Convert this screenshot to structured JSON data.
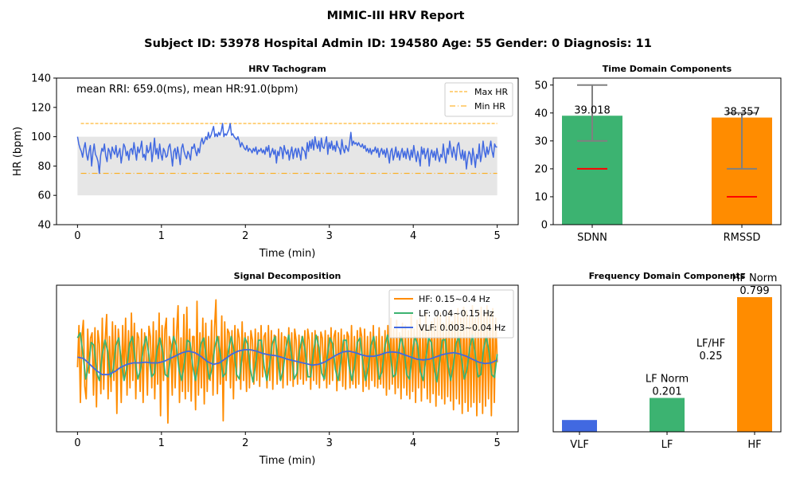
{
  "figure": {
    "title": "MIMIC-III HRV Report",
    "subtitle": "Subject ID: 53978 Hospital Admin ID: 194580 Age: 55 Gender: 0 Diagnosis: 11"
  },
  "colors": {
    "hr_line": "#4169e1",
    "max_line": "#ffa500",
    "min_line": "#ffa500",
    "band": "#e6e6e6",
    "sdnn": "#3cb371",
    "rmssd": "#ff8c00",
    "error": "#808080",
    "median": "#ff0000",
    "vlf": "#4169e1",
    "lf": "#3cb371",
    "hf": "#ff8c00"
  },
  "chart_data": [
    {
      "id": "tachogram",
      "type": "line",
      "title": "HRV Tachogram",
      "xlabel": "Time (min)",
      "ylabel": "HR (bpm)",
      "xlim": [
        -0.25,
        5.25
      ],
      "ylim": [
        40,
        140
      ],
      "xticks": [
        "0",
        "1",
        "2",
        "3",
        "4",
        "5"
      ],
      "yticks": [
        "40",
        "60",
        "80",
        "100",
        "120",
        "140"
      ],
      "annotation": "mean RRI: 659.0(ms), mean HR:91.0(bpm)",
      "normal_band": [
        60,
        100
      ],
      "max_hr": 109,
      "min_hr": 75,
      "legend": [
        "Max HR",
        "Min HR"
      ],
      "hr_x_range": [
        0,
        5
      ],
      "hr_values": [
        100,
        95,
        92,
        90,
        86,
        92,
        96,
        88,
        84,
        90,
        94,
        80,
        89,
        95,
        88,
        86,
        83,
        75,
        87,
        92,
        90,
        95,
        87,
        83,
        92,
        90,
        85,
        93,
        90,
        88,
        94,
        86,
        89,
        92,
        82,
        88,
        95,
        93,
        87,
        90,
        84,
        91,
        92,
        88,
        96,
        90,
        84,
        93,
        89,
        92,
        97,
        86,
        88,
        84,
        94,
        89,
        91,
        96,
        83,
        90,
        99,
        88,
        92,
        85,
        95,
        88,
        84,
        92,
        90,
        86,
        87,
        93,
        95,
        88,
        80,
        90,
        92,
        85,
        93,
        88,
        81,
        92,
        95,
        90,
        87,
        85,
        90,
        88,
        84,
        93,
        92,
        95,
        90,
        87,
        92,
        89,
        96,
        99,
        95,
        97,
        100,
        98,
        103,
        99,
        101,
        104,
        107,
        100,
        102,
        100,
        103,
        101,
        104,
        109,
        100,
        102,
        101,
        103,
        105,
        109,
        101,
        102,
        100,
        99,
        98,
        100,
        97,
        93,
        96,
        94,
        92,
        91,
        94,
        90,
        92,
        91,
        89,
        92,
        90,
        93,
        88,
        91,
        90,
        92,
        89,
        91,
        88,
        93,
        90,
        94,
        86,
        89,
        92,
        88,
        91,
        82,
        90,
        87,
        93,
        92,
        85,
        94,
        90,
        88,
        91,
        84,
        89,
        93,
        85,
        90,
        92,
        86,
        92,
        89,
        84,
        93,
        91,
        90,
        85,
        96,
        90,
        97,
        92,
        98,
        91,
        100,
        95,
        92,
        97,
        90,
        99,
        93,
        92,
        96,
        100,
        88,
        96,
        92,
        97,
        91,
        94,
        90,
        97,
        93,
        92,
        88,
        98,
        92,
        89,
        94,
        92,
        90,
        96,
        103,
        94,
        97,
        95,
        96,
        94,
        96,
        94,
        93,
        95,
        92,
        94,
        90,
        92,
        89,
        92,
        88,
        91,
        90,
        93,
        89,
        92,
        86,
        90,
        92,
        88,
        91,
        86,
        92,
        88,
        82,
        90,
        92,
        84,
        88,
        93,
        86,
        90,
        84,
        89,
        92,
        86,
        90,
        85,
        92,
        88,
        84,
        91,
        86,
        94,
        88,
        83,
        90,
        86,
        80,
        93,
        88,
        92,
        85,
        89,
        92,
        80,
        88,
        91,
        86,
        90,
        84,
        92,
        87,
        83,
        88,
        86,
        95,
        87,
        82,
        92,
        88,
        97,
        91,
        86,
        93,
        89,
        84,
        94,
        96,
        89,
        85,
        91,
        84,
        90,
        78,
        85,
        90,
        88,
        81,
        92,
        86,
        79,
        88,
        85,
        95,
        83,
        88,
        97,
        90,
        86,
        93,
        88,
        92,
        97,
        90,
        86,
        95,
        93,
        93
      ]
    },
    {
      "id": "time_domain",
      "type": "bar",
      "title": "Time Domain Components",
      "categories": [
        "SDNN",
        "RMSSD"
      ],
      "values": [
        39.018,
        38.357
      ],
      "value_labels": [
        "39.018",
        "38.357"
      ],
      "error_low": [
        30,
        20
      ],
      "error_high": [
        50,
        40
      ],
      "reference": [
        20,
        10
      ],
      "ylim": [
        0,
        52.5
      ],
      "yticks": [
        "0",
        "10",
        "20",
        "30",
        "40",
        "50"
      ]
    },
    {
      "id": "decomposition",
      "type": "line",
      "title": "Signal Decomposition",
      "xlabel": "Time (min)",
      "xlim": [
        -0.25,
        5.25
      ],
      "ylim": [
        -1.0,
        1.0
      ],
      "xticks": [
        "0",
        "1",
        "2",
        "3",
        "4",
        "5"
      ],
      "series": [
        {
          "name": "HF: 0.15~0.4 Hz",
          "color_key": "hf",
          "x_range": [
            0,
            5
          ],
          "values": [
            -0.12,
            0.45,
            -0.6,
            0.3,
            0.52,
            -0.38,
            -0.55,
            0.4,
            -0.2,
            0.28,
            0.35,
            -0.5,
            0.42,
            -0.66,
            0.38,
            0.2,
            -0.48,
            0.55,
            -0.42,
            0.25,
            0.6,
            -0.55,
            0.3,
            -0.45,
            0.5,
            -0.3,
            0.45,
            -0.75,
            0.4,
            0.15,
            -0.6,
            0.45,
            -0.25,
            0.55,
            -0.5,
            0.38,
            -0.4,
            0.62,
            -0.3,
            0.48,
            -0.55,
            0.35,
            0.28,
            -0.45,
            0.4,
            -0.6,
            0.35,
            0.1,
            -0.5,
            0.44,
            0.3,
            -0.4,
            0.5,
            -0.55,
            0.38,
            -0.35,
            0.62,
            -0.78,
            0.45,
            -0.3,
            0.4,
            0.55,
            -0.88,
            0.3,
            0.2,
            -0.5,
            0.55,
            -0.4,
            0.35,
            0.72,
            -0.6,
            0.28,
            -0.45,
            0.6,
            -0.55,
            0.7,
            -0.45,
            0.4,
            -0.58,
            0.3,
            0.3,
            -0.7,
            0.78,
            -0.5,
            0.35,
            -0.4,
            0.55,
            -0.62,
            0.48,
            -0.45,
            0.3,
            -0.3,
            0.52,
            -0.5,
            0.42,
            0.8,
            -0.48,
            0.3,
            -0.35,
            0.58,
            -0.85,
            0.5,
            -0.3,
            0.4,
            0.35,
            -0.4,
            0.38,
            -0.55,
            0.45,
            -0.3,
            0.4,
            0.28,
            -0.42,
            0.5,
            -0.3,
            0.35,
            -0.45,
            0.3,
            -0.4,
            0.38,
            0.25,
            -0.35,
            0.4,
            -0.3,
            0.35,
            -0.38,
            0.45,
            -0.25,
            0.3,
            0.35,
            -0.4,
            0.45,
            -0.3,
            0.38,
            -0.42,
            0.32,
            0.3,
            -0.35,
            0.4,
            -0.28,
            0.35,
            -0.4,
            0.3,
            0.28,
            -0.36,
            0.42,
            -0.3,
            0.35,
            -0.38,
            0.4,
            0.25,
            -0.35,
            0.32,
            -0.28,
            0.3,
            -0.35,
            0.38,
            -0.3,
            0.4,
            0.25,
            -0.42,
            0.35,
            -0.3,
            0.38,
            -0.35,
            0.3,
            -0.4,
            0.36,
            0.28,
            -0.3,
            0.38,
            -0.4,
            0.32,
            -0.35,
            0.42,
            -0.3,
            0.3,
            0.38,
            -0.44,
            0.35,
            -0.3,
            0.4,
            -0.38,
            0.32,
            -0.42,
            0.36,
            0.3,
            -0.4,
            0.45,
            -0.35,
            0.3,
            -0.4,
            0.38,
            -0.35,
            0.42,
            0.3,
            -0.45,
            0.4,
            -0.38,
            0.3,
            -0.42,
            0.36,
            -0.3,
            0.45,
            -0.38,
            0.3,
            -0.4,
            0.42,
            -0.35,
            0.3,
            -0.4,
            0.38,
            -0.5,
            0.45,
            -0.42,
            0.55,
            -0.35,
            0.4,
            -0.48,
            0.52,
            -0.4,
            0.35,
            -0.55,
            0.48,
            -0.4,
            0.45,
            -0.5,
            0.38,
            -0.55,
            0.6,
            -0.45,
            0.4,
            -0.6,
            0.52,
            -0.4,
            0.55,
            -0.58,
            0.45,
            -0.4,
            0.62,
            -0.55,
            0.45,
            -0.6,
            0.5,
            -0.48,
            0.55,
            -0.65,
            0.58,
            -0.5,
            0.62,
            -0.55,
            0.48,
            -0.62,
            0.58,
            -0.52,
            0.65,
            -0.58,
            0.5,
            -0.7,
            0.6,
            -0.55,
            0.68,
            -0.62,
            0.55,
            -0.75,
            0.7,
            -0.6,
            0.65,
            -0.72,
            0.58,
            -0.66,
            0.72,
            -0.6,
            0.55,
            -0.78,
            0.65,
            -0.6,
            0.7,
            -0.75,
            0.6,
            -0.65,
            0.72,
            -0.55,
            0.62,
            -0.78,
            0.68,
            -0.6,
            0.55,
            -0.05
          ]
        },
        {
          "name": "LF: 0.04~0.15 Hz",
          "color_key": "lf",
          "x_range": [
            0,
            5
          ],
          "values": [
            0.28,
            0.35,
            0.05,
            -0.28,
            -0.12,
            0.22,
            0.18,
            -0.2,
            -0.3,
            0.05,
            0.25,
            0.1,
            -0.25,
            -0.15,
            0.18,
            0.28,
            -0.05,
            -0.3,
            -0.12,
            0.2,
            0.3,
            -0.02,
            -0.28,
            -0.15,
            0.15,
            0.3,
            0.05,
            -0.25,
            -0.2,
            0.12,
            0.28,
            0.1,
            -0.22,
            -0.25,
            0.05,
            0.3,
            0.18,
            -0.15,
            -0.3,
            -0.05,
            0.25,
            0.22,
            -0.1,
            -0.3,
            -0.08,
            0.2,
            0.28,
            0.0,
            -0.28,
            -0.15,
            0.15,
            0.3,
            0.08,
            -0.25,
            -0.2,
            0.1,
            0.3,
            0.12,
            -0.22,
            -0.28,
            0.02,
            0.28,
            0.2,
            -0.15,
            -0.32,
            -0.05,
            0.25,
            0.25,
            -0.1,
            -0.3,
            -0.1,
            0.2,
            0.3,
            0.0,
            -0.3,
            -0.15,
            0.15,
            0.32,
            0.05,
            -0.28,
            -0.2,
            0.12,
            0.3,
            0.1,
            -0.25,
            -0.25,
            0.08,
            0.32,
            0.15,
            -0.2,
            -0.28,
            0.02,
            0.28,
            0.2,
            -0.15,
            -0.3,
            -0.05,
            0.25,
            0.25,
            -0.1,
            -0.3,
            -0.1,
            0.22,
            0.28,
            -0.05,
            -0.3,
            -0.12,
            0.18,
            0.3,
            0.02,
            -0.28,
            -0.18,
            0.15,
            0.32,
            0.08,
            -0.25,
            -0.22,
            0.1,
            0.3,
            0.12,
            -0.22,
            -0.28,
            0.05,
            0.3,
            0.18,
            -0.18,
            -0.3,
            0.0,
            0.28,
            0.22,
            -0.12,
            -0.32,
            -0.05,
            0.25,
            0.26,
            -0.08,
            -0.3,
            -0.1,
            0.2,
            0.3,
            0.0,
            -0.28,
            -0.15,
            0.15,
            0.32,
            0.05,
            -0.25,
            -0.22,
            0.12,
            0.3,
            0.1,
            -0.22,
            -0.26,
            0.06
          ]
        },
        {
          "name": "VLF: 0.003~0.04 Hz",
          "color_key": "vlf",
          "x_range": [
            0,
            5
          ],
          "values": [
            0.02,
            0.0,
            -0.08,
            -0.16,
            -0.22,
            -0.22,
            -0.18,
            -0.12,
            -0.08,
            -0.06,
            -0.06,
            -0.05,
            -0.06,
            -0.06,
            -0.04,
            0.0,
            0.04,
            0.08,
            0.1,
            0.08,
            0.03,
            -0.04,
            -0.08,
            -0.06,
            0.0,
            0.06,
            0.1,
            0.12,
            0.12,
            0.1,
            0.07,
            0.05,
            0.04,
            0.02,
            -0.01,
            -0.03,
            -0.05,
            -0.07,
            -0.09,
            -0.08,
            -0.05,
            0.0,
            0.05,
            0.09,
            0.1,
            0.08,
            0.05,
            0.03,
            0.03,
            0.05,
            0.08,
            0.09,
            0.08,
            0.05,
            0.02,
            -0.01,
            -0.02,
            -0.01,
            0.02,
            0.05,
            0.07,
            0.08,
            0.06,
            0.03,
            -0.01,
            -0.05,
            -0.07,
            -0.06,
            -0.02
          ]
        }
      ]
    },
    {
      "id": "frequency_domain",
      "type": "bar",
      "title": "Frequency Domain Components",
      "categories": [
        "VLF",
        "LF",
        "HF"
      ],
      "values": [
        0.07,
        0.201,
        0.799
      ],
      "value_labels": [
        "",
        "LF Norm\n0.201",
        "HF Norm\n0.799"
      ],
      "ratio_label": "LF/HF\n0.25",
      "ylim": [
        0,
        0.87
      ]
    }
  ]
}
